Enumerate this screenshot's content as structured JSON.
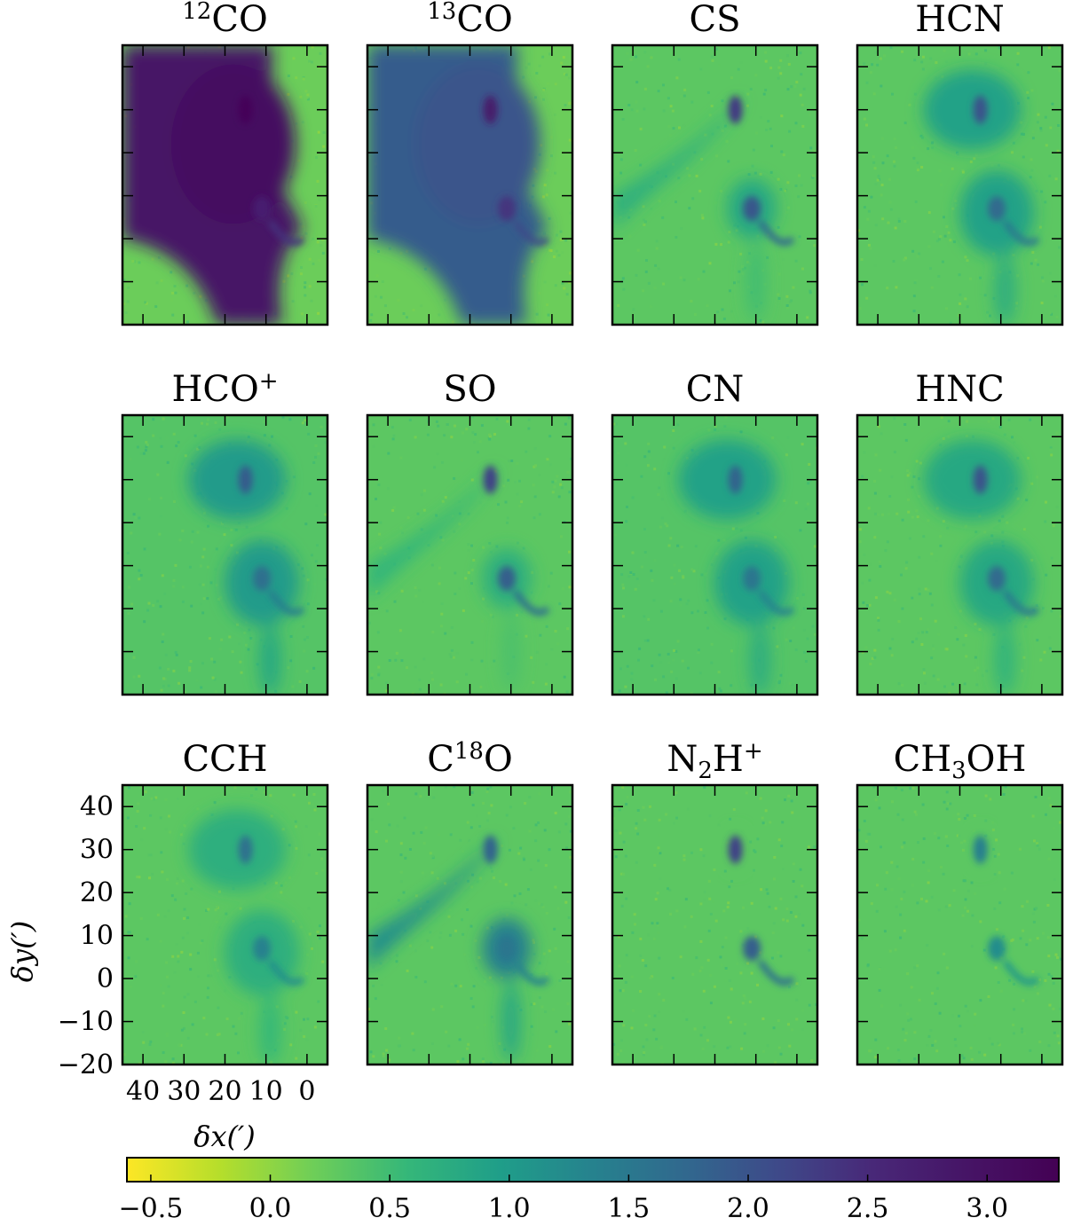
{
  "chart_data": {
    "type": "heatmap",
    "layout": {
      "rows": 3,
      "cols": 4
    },
    "panels": [
      {
        "title": "12CO",
        "title_base": "CO",
        "title_pre_sup": "12",
        "peak": 3.2,
        "background": 0.2,
        "extended_level": 2.9,
        "extended_coverage": "broad"
      },
      {
        "title": "13CO",
        "title_base": "CO",
        "title_pre_sup": "13",
        "peak": 2.8,
        "background": 0.2,
        "extended_level": 1.9,
        "extended_coverage": "broad"
      },
      {
        "title": "CS",
        "title_base": "CS",
        "peak": 2.3,
        "background": 0.3,
        "extended_level": 0.7,
        "extended_coverage": "filament"
      },
      {
        "title": "HCN",
        "title_base": "HCN",
        "peak": 2.0,
        "background": 0.3,
        "extended_level": 0.9,
        "extended_coverage": "clumps"
      },
      {
        "title": "HCO+",
        "title_base": "HCO",
        "title_sup": "+",
        "peak": 1.9,
        "background": 0.35,
        "extended_level": 1.0,
        "extended_coverage": "clumps"
      },
      {
        "title": "SO",
        "title_base": "SO",
        "peak": 2.2,
        "background": 0.3,
        "extended_level": 0.6,
        "extended_coverage": "filament"
      },
      {
        "title": "CN",
        "title_base": "CN",
        "peak": 1.8,
        "background": 0.35,
        "extended_level": 0.9,
        "extended_coverage": "clumps"
      },
      {
        "title": "HNC",
        "title_base": "HNC",
        "peak": 2.0,
        "background": 0.3,
        "extended_level": 0.8,
        "extended_coverage": "clumps"
      },
      {
        "title": "CCH",
        "title_base": "CCH",
        "peak": 1.6,
        "background": 0.3,
        "extended_level": 0.7,
        "extended_coverage": "clumps"
      },
      {
        "title": "C18O",
        "title_base": "C",
        "title_mid_sup": "18",
        "title_end": "O",
        "peak": 1.8,
        "background": 0.3,
        "extended_level": 1.2,
        "extended_coverage": "filament"
      },
      {
        "title": "N2H+",
        "title_base": "N",
        "title_sub": "2",
        "title_end": "H",
        "title_sup": "+",
        "peak": 2.2,
        "background": 0.3,
        "extended_level": 0.3,
        "extended_coverage": "cores"
      },
      {
        "title": "CH3OH",
        "title_base": "CH",
        "title_sub": "3",
        "title_end": "OH",
        "peak": 1.4,
        "background": 0.3,
        "extended_level": 0.3,
        "extended_coverage": "cores"
      }
    ],
    "x_axis": {
      "label": "δx(′)",
      "range": [
        45,
        -5
      ],
      "ticks": [
        40,
        30,
        20,
        10,
        0
      ],
      "tick_labels": [
        "40",
        "30",
        "20",
        "10",
        "0"
      ],
      "inverted": true
    },
    "y_axis": {
      "label": "δy(′)",
      "range": [
        -20,
        45
      ],
      "ticks": [
        40,
        30,
        20,
        10,
        0,
        -10,
        -20
      ],
      "tick_labels": [
        "40",
        "30",
        "20",
        "10",
        "0",
        "−10",
        "−20"
      ]
    },
    "colorbar": {
      "range": [
        -0.6,
        3.3
      ],
      "ticks": [
        -0.5,
        0.0,
        0.5,
        1.0,
        1.5,
        2.0,
        2.5,
        3.0
      ],
      "tick_labels": [
        "−0.5",
        "0.0",
        "0.5",
        "1.0",
        "1.5",
        "2.0",
        "2.5",
        "3.0"
      ],
      "colormap": "viridis_r",
      "orientation": "horizontal",
      "placement": "bottom"
    },
    "features": {
      "core_north": {
        "x": 15,
        "y": 30
      },
      "core_south": {
        "x": 11,
        "y": 7
      },
      "hook_end": {
        "x": 1,
        "y": 0
      }
    }
  }
}
